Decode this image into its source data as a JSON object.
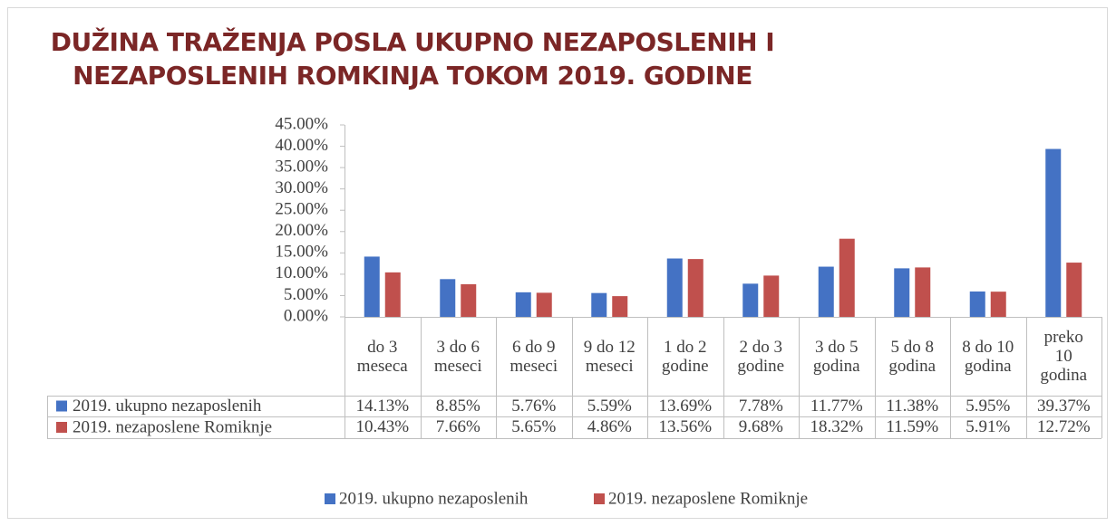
{
  "chart_data": {
    "type": "bar",
    "title": "DUŽINA TRAŽENJA POSLA UKUPNO NEZAPOSLENIH I NEZAPOSLENIH ROMKINJA  TOKOM 2019. GODINE",
    "categories": [
      "do 3 meseca",
      "3 do 6 meseci",
      "6 do 9 meseci",
      "9 do 12 meseci",
      "1 do 2 godine",
      "2 do 3 godine",
      "3 do 5 godina",
      "5 do 8 godina",
      "8 do 10 godina",
      "preko 10 godina"
    ],
    "series": [
      {
        "name": "2019. ukupno nezaposlenih",
        "color": "#4472c4",
        "values": [
          14.13,
          8.85,
          5.76,
          5.59,
          13.69,
          7.78,
          11.77,
          11.38,
          5.95,
          39.37
        ],
        "value_labels": [
          "14.13%",
          "8.85%",
          "5.76%",
          "5.59%",
          "13.69%",
          "7.78%",
          "11.77%",
          "11.38%",
          "5.95%",
          "39.37%"
        ]
      },
      {
        "name": "2019. nezaposlene Romiknje",
        "color": "#c0504d",
        "values": [
          10.43,
          7.66,
          5.65,
          4.86,
          13.56,
          9.68,
          18.32,
          11.59,
          5.91,
          12.72
        ],
        "value_labels": [
          "10.43%",
          "7.66%",
          "5.65%",
          "4.86%",
          "13.56%",
          "9.68%",
          "18.32%",
          "11.59%",
          "5.91%",
          "12.72%"
        ]
      }
    ],
    "ylim": [
      0,
      45
    ],
    "yticks": [
      {
        "value": 0,
        "label": "0.00%"
      },
      {
        "value": 5,
        "label": "5.00%"
      },
      {
        "value": 10,
        "label": "10.00%"
      },
      {
        "value": 15,
        "label": "15.00%"
      },
      {
        "value": 20,
        "label": "20.00%"
      },
      {
        "value": 25,
        "label": "25.00%"
      },
      {
        "value": 30,
        "label": "30.00%"
      },
      {
        "value": 35,
        "label": "35.00%"
      },
      {
        "value": 40,
        "label": "40.00%"
      },
      {
        "value": 45,
        "label": "45.00%"
      }
    ],
    "grid": false,
    "legend": "bottom"
  }
}
